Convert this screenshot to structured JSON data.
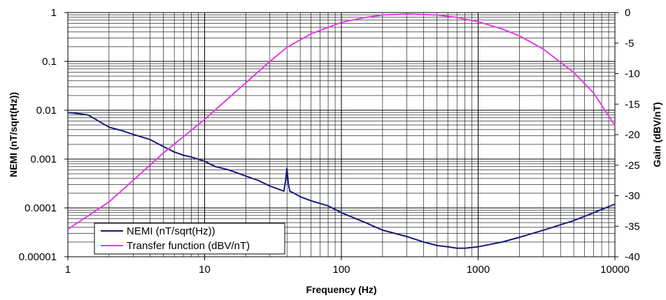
{
  "chart_data": {
    "type": "line",
    "xlabel": "Frequency (Hz)",
    "ylabel_left": "NEMI (nT/sqrt(Hz))",
    "ylabel_right": "Gain (dBV/nT)",
    "x_scale": "log",
    "y_left_scale": "log",
    "y_right_scale": "linear",
    "xlim": [
      1,
      10000
    ],
    "ylim_left": [
      1e-05,
      1
    ],
    "ylim_right": [
      -40,
      0
    ],
    "x_ticks": [
      "1",
      "10",
      "100",
      "1000",
      "10000"
    ],
    "y_left_ticks": [
      "1",
      "0.1",
      "0.01",
      "0.001",
      "0.0001",
      "0.00001"
    ],
    "y_right_ticks": [
      "0",
      "-5",
      "-10",
      "-15",
      "-20",
      "-25",
      "-30",
      "-35",
      "-40"
    ],
    "grid": true,
    "legend_position": "bottom-left",
    "series": [
      {
        "name": "NEMI (nT/sqrt(Hz))",
        "axis": "left",
        "color": "#1a1a7a",
        "x": [
          1,
          1.2,
          1.4,
          1.6,
          2,
          2.5,
          3,
          4,
          5,
          6,
          7,
          8,
          10,
          12,
          15,
          20,
          25,
          30,
          35,
          38,
          39,
          40,
          41,
          42,
          45,
          50,
          60,
          80,
          100,
          150,
          200,
          300,
          400,
          500,
          600,
          700,
          800,
          1000,
          1500,
          2000,
          3000,
          5000,
          7000,
          10000
        ],
        "y": [
          0.009,
          0.0085,
          0.008,
          0.0065,
          0.0045,
          0.0038,
          0.0032,
          0.0025,
          0.0018,
          0.0014,
          0.0012,
          0.0011,
          0.0009,
          0.0007,
          0.0006,
          0.00045,
          0.00036,
          0.00028,
          0.00024,
          0.00022,
          0.00035,
          0.00065,
          0.0003,
          0.00022,
          0.0002,
          0.00017,
          0.00014,
          0.00011,
          8e-05,
          5e-05,
          3.5e-05,
          2.6e-05,
          2e-05,
          1.7e-05,
          1.6e-05,
          1.5e-05,
          1.5e-05,
          1.6e-05,
          2e-05,
          2.5e-05,
          3.5e-05,
          5.5e-05,
          8e-05,
          0.00012
        ]
      },
      {
        "name": "Transfer function (dBV/nT)",
        "axis": "right",
        "color": "#e040e0",
        "x": [
          1,
          2,
          3,
          5,
          10,
          20,
          30,
          40,
          60,
          100,
          150,
          200,
          300,
          500,
          700,
          1000,
          1500,
          2000,
          3000,
          5000,
          7000,
          10000
        ],
        "y": [
          -35.5,
          -31,
          -27.5,
          -23,
          -17.5,
          -11.5,
          -8,
          -5.7,
          -3.5,
          -1.6,
          -0.8,
          -0.4,
          -0.25,
          -0.4,
          -0.8,
          -1.5,
          -2.7,
          -3.8,
          -6,
          -9.8,
          -13.2,
          -18.5
        ]
      }
    ]
  }
}
